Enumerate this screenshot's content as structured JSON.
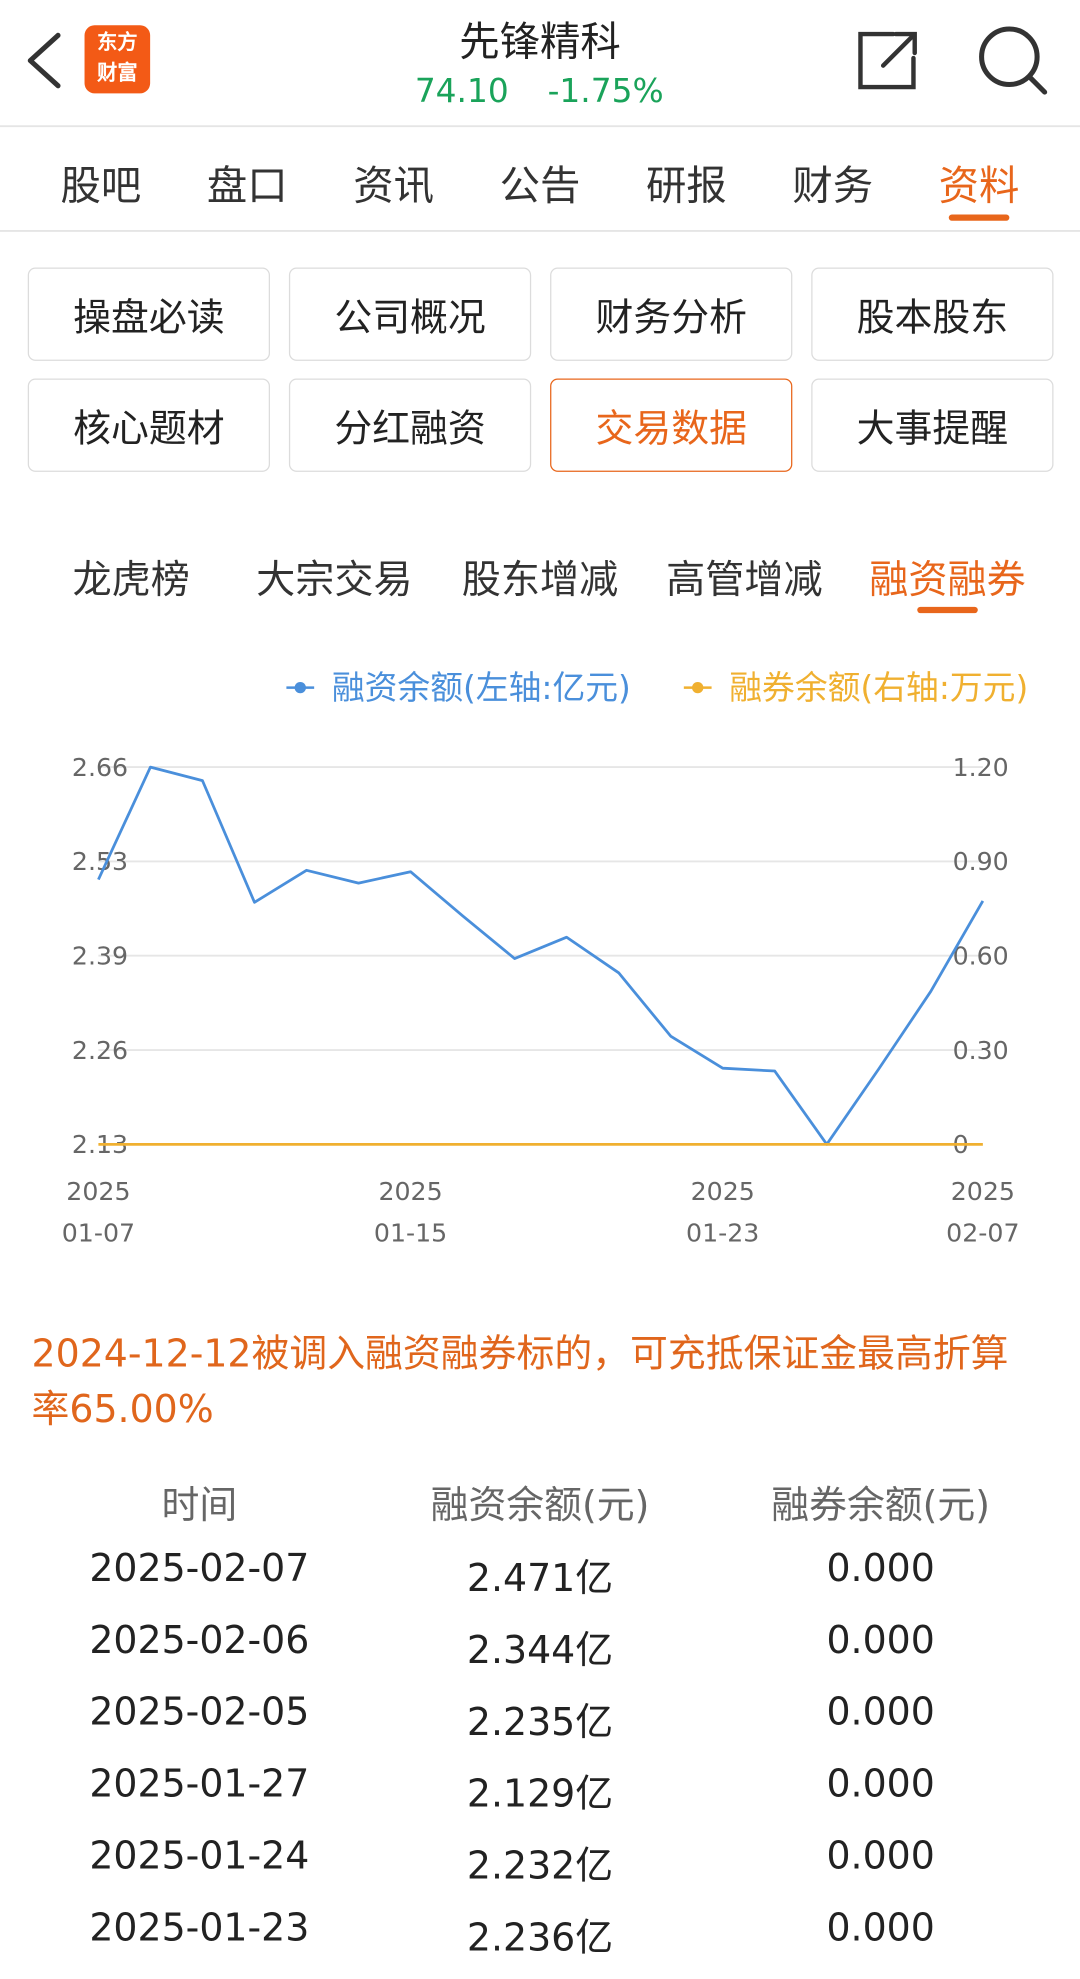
{
  "header": {
    "logo": "东方\n财富",
    "title": "先锋精科",
    "price": "74.10",
    "change": "-1.75%"
  },
  "tabs": {
    "items": [
      "股吧",
      "盘口",
      "资讯",
      "公告",
      "研报",
      "财务",
      "资料"
    ],
    "active": 6
  },
  "buttons": {
    "items": [
      "操盘必读",
      "公司概况",
      "财务分析",
      "股本股东",
      "核心题材",
      "分红融资",
      "交易数据",
      "大事提醒"
    ],
    "active": 6
  },
  "subtabs": {
    "items": [
      "龙虎榜",
      "大宗交易",
      "股东增减",
      "高管增减",
      "融资融券"
    ],
    "active": 4
  },
  "chart_data": {
    "type": "line",
    "categories": [
      "2025\n01-07",
      null,
      null,
      null,
      null,
      null,
      "2025\n01-15",
      null,
      null,
      null,
      null,
      null,
      "2025\n01-23",
      null,
      null,
      null,
      null,
      "2025\n02-07"
    ],
    "series": [
      {
        "name": "融资余额(左轴:亿元)",
        "color": "#4a8fdb",
        "values": [
          2.501,
          2.659,
          2.64,
          2.469,
          2.514,
          2.496,
          2.512,
          2.45,
          2.39,
          2.42,
          2.37,
          2.281,
          2.236,
          2.232,
          2.129,
          2.235,
          2.344,
          2.471
        ]
      },
      {
        "name": "融券余额(右轴:万元)",
        "color": "#f0b030",
        "axis": "y2",
        "values": [
          0,
          0,
          0,
          0,
          0,
          0,
          0,
          0,
          0,
          0,
          0,
          0,
          0,
          0,
          0,
          0,
          0,
          0
        ]
      }
    ],
    "ylim": [
      2.129,
      2.659
    ],
    "yticks": [
      {
        "value": 2.129,
        "label": "2.13"
      },
      {
        "value": 2.2615,
        "label": "2.26"
      },
      {
        "value": 2.394,
        "label": "2.39"
      },
      {
        "value": 2.5265,
        "label": "2.53"
      },
      {
        "value": 2.659,
        "label": "2.66"
      }
    ],
    "y2lim": [
      0,
      1.2
    ],
    "y2ticks": [
      0,
      {
        "value": 0.3,
        "label": "0.30"
      },
      {
        "value": 0.6,
        "label": "0.60"
      },
      {
        "value": 0.9,
        "label": "0.90"
      },
      {
        "value": 1.2,
        "label": "1.20"
      }
    ],
    "grid": true
  },
  "note": "2024-12-12被调入融资融券标的，可充抵保证金最高折算率65.00%",
  "table": {
    "header": [
      "时间",
      "融资余额(元)",
      "融券余额(元)"
    ],
    "rows": [
      [
        "2025-02-07",
        "2.471亿",
        "0.000"
      ],
      [
        "2025-02-06",
        "2.344亿",
        "0.000"
      ],
      [
        "2025-02-05",
        "2.235亿",
        "0.000"
      ],
      [
        "2025-01-27",
        "2.129亿",
        "0.000"
      ],
      [
        "2025-01-24",
        "2.232亿",
        "0.000"
      ],
      [
        "2025-01-23",
        "2.236亿",
        "0.000"
      ]
    ]
  }
}
